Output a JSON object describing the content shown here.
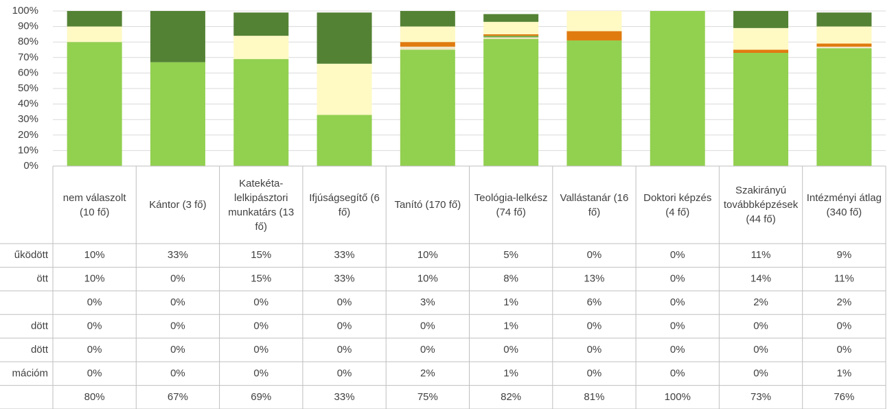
{
  "chart_data": {
    "type": "stacked_bar",
    "categories": [
      "nem válaszolt (10 fő)",
      "Kántor (3 fő)",
      "Katekéta-lelkipásztori munkatárs (13 fő)",
      "Ifjúságsegítő (6 fő)",
      "Tanító (170 fő)",
      "Teológia-lelkész (74 fő)",
      "Vallástanár (16 fő)",
      "Doktori képzés (4 fő)",
      "Szakirányú továbbképzések (44 fő)",
      "Intézményi átlag (340 fő)"
    ],
    "series": [
      {
        "name": "űködött",
        "color": "#548235",
        "values": [
          10,
          33,
          15,
          33,
          10,
          5,
          0,
          0,
          11,
          9
        ],
        "value_labels": [
          "10%",
          "33%",
          "15%",
          "33%",
          "10%",
          "5%",
          "0%",
          "0%",
          "11%",
          "9%"
        ]
      },
      {
        "name": "ött",
        "color": "#fff9c4",
        "values": [
          10,
          0,
          15,
          33,
          10,
          8,
          13,
          0,
          14,
          11
        ],
        "value_labels": [
          "10%",
          "0%",
          "15%",
          "33%",
          "10%",
          "8%",
          "13%",
          "0%",
          "14%",
          "11%"
        ]
      },
      {
        "name": null,
        "color": "#e07b10",
        "values": [
          0,
          0,
          0,
          0,
          3,
          1,
          6,
          0,
          2,
          2
        ],
        "value_labels": [
          "0%",
          "0%",
          "0%",
          "0%",
          "3%",
          "1%",
          "6%",
          "0%",
          "2%",
          "2%"
        ]
      },
      {
        "name": "dött",
        "color": "#70ad47",
        "values": [
          0,
          0,
          0,
          0,
          0,
          1,
          0,
          0,
          0,
          0
        ],
        "value_labels": [
          "0%",
          "0%",
          "0%",
          "0%",
          "0%",
          "1%",
          "0%",
          "0%",
          "0%",
          "0%"
        ]
      },
      {
        "name": "dött",
        "color": "#a9d18e",
        "values": [
          0,
          0,
          0,
          0,
          0,
          0,
          0,
          0,
          0,
          0
        ],
        "value_labels": [
          "0%",
          "0%",
          "0%",
          "0%",
          "0%",
          "0%",
          "0%",
          "0%",
          "0%",
          "0%"
        ]
      },
      {
        "name": "mációm",
        "color": "#f2e6c8",
        "values": [
          0,
          0,
          0,
          0,
          2,
          1,
          0,
          0,
          0,
          1
        ],
        "value_labels": [
          "0%",
          "0%",
          "0%",
          "0%",
          "2%",
          "1%",
          "0%",
          "0%",
          "0%",
          "1%"
        ]
      },
      {
        "name": null,
        "color": "#92d050",
        "values": [
          80,
          67,
          69,
          33,
          75,
          82,
          81,
          100,
          73,
          76
        ],
        "value_labels": [
          "80%",
          "67%",
          "69%",
          "33%",
          "75%",
          "82%",
          "81%",
          "100%",
          "73%",
          "76%"
        ]
      }
    ],
    "ylim": [
      0,
      100
    ],
    "yticks": [
      {
        "value": 0,
        "label": "0%"
      },
      {
        "value": 10,
        "label": "10%"
      },
      {
        "value": 20,
        "label": "20%"
      },
      {
        "value": 30,
        "label": "30%"
      },
      {
        "value": 40,
        "label": "40%"
      },
      {
        "value": 50,
        "label": "50%"
      },
      {
        "value": 60,
        "label": "60%"
      },
      {
        "value": 70,
        "label": "70%"
      },
      {
        "value": 80,
        "label": "80%"
      },
      {
        "value": 90,
        "label": "90%"
      },
      {
        "value": 100,
        "label": "100%"
      }
    ],
    "grid": true
  }
}
